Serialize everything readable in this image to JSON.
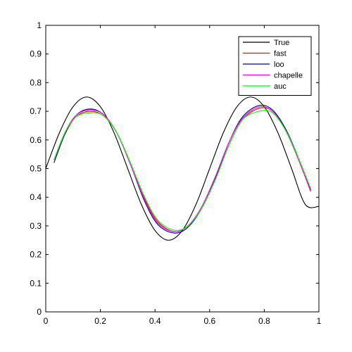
{
  "chart_data": {
    "type": "line",
    "title": "",
    "xlabel": "",
    "ylabel": "",
    "xlim": [
      0,
      1
    ],
    "ylim": [
      0,
      1
    ],
    "x_ticks": [
      "0",
      "0.2",
      "0.4",
      "0.6",
      "0.8",
      "1"
    ],
    "y_ticks": [
      "0",
      "0.1",
      "0.2",
      "0.3",
      "0.4",
      "0.5",
      "0.6",
      "0.7",
      "0.8",
      "0.9",
      "1"
    ],
    "grid": false,
    "legend_position": "top-right",
    "series": [
      {
        "name": "True",
        "color": "#000000",
        "x": [
          0.0,
          0.05,
          0.1,
          0.15,
          0.2,
          0.25,
          0.3,
          0.35,
          0.4,
          0.45,
          0.5,
          0.55,
          0.6,
          0.65,
          0.7,
          0.75,
          0.8,
          0.85,
          0.9,
          0.95,
          1.0
        ],
        "y": [
          0.5,
          0.625,
          0.716,
          0.75,
          0.716,
          0.625,
          0.5,
          0.375,
          0.284,
          0.25,
          0.284,
          0.375,
          0.5,
          0.625,
          0.716,
          0.75,
          0.716,
          0.625,
          0.5,
          0.375,
          0.368
        ]
      },
      {
        "name": "fast",
        "color": "#ff0000",
        "x": [
          0.03,
          0.07,
          0.11,
          0.16,
          0.21,
          0.26,
          0.31,
          0.36,
          0.41,
          0.47,
          0.52,
          0.57,
          0.62,
          0.67,
          0.72,
          0.78,
          0.83,
          0.88,
          0.93,
          0.97
        ],
        "y": [
          0.53,
          0.62,
          0.68,
          0.7,
          0.685,
          0.625,
          0.52,
          0.4,
          0.315,
          0.28,
          0.3,
          0.36,
          0.46,
          0.58,
          0.67,
          0.71,
          0.7,
          0.63,
          0.52,
          0.42
        ]
      },
      {
        "name": "loo",
        "color": "#000080",
        "x": [
          0.03,
          0.07,
          0.11,
          0.16,
          0.21,
          0.26,
          0.31,
          0.36,
          0.41,
          0.47,
          0.52,
          0.57,
          0.62,
          0.67,
          0.72,
          0.78,
          0.83,
          0.88,
          0.93,
          0.97
        ],
        "y": [
          0.52,
          0.62,
          0.685,
          0.708,
          0.69,
          0.625,
          0.515,
          0.39,
          0.305,
          0.275,
          0.295,
          0.36,
          0.465,
          0.59,
          0.68,
          0.72,
          0.705,
          0.635,
          0.525,
          0.425
        ]
      },
      {
        "name": "chapelle",
        "color": "#ff00ff",
        "x": [
          0.03,
          0.07,
          0.11,
          0.16,
          0.21,
          0.26,
          0.31,
          0.36,
          0.41,
          0.47,
          0.52,
          0.57,
          0.62,
          0.67,
          0.72,
          0.78,
          0.83,
          0.88,
          0.93,
          0.97
        ],
        "y": [
          0.53,
          0.625,
          0.685,
          0.705,
          0.69,
          0.625,
          0.515,
          0.395,
          0.31,
          0.28,
          0.3,
          0.365,
          0.47,
          0.59,
          0.675,
          0.715,
          0.7,
          0.63,
          0.52,
          0.42
        ]
      },
      {
        "name": "auc",
        "color": "#00ff00",
        "x": [
          0.03,
          0.07,
          0.11,
          0.16,
          0.21,
          0.26,
          0.31,
          0.36,
          0.41,
          0.47,
          0.52,
          0.57,
          0.62,
          0.67,
          0.72,
          0.78,
          0.83,
          0.88,
          0.93,
          0.97
        ],
        "y": [
          0.53,
          0.625,
          0.68,
          0.695,
          0.685,
          0.625,
          0.52,
          0.405,
          0.32,
          0.285,
          0.3,
          0.36,
          0.46,
          0.58,
          0.67,
          0.7,
          0.695,
          0.63,
          0.525,
          0.43
        ]
      }
    ]
  }
}
